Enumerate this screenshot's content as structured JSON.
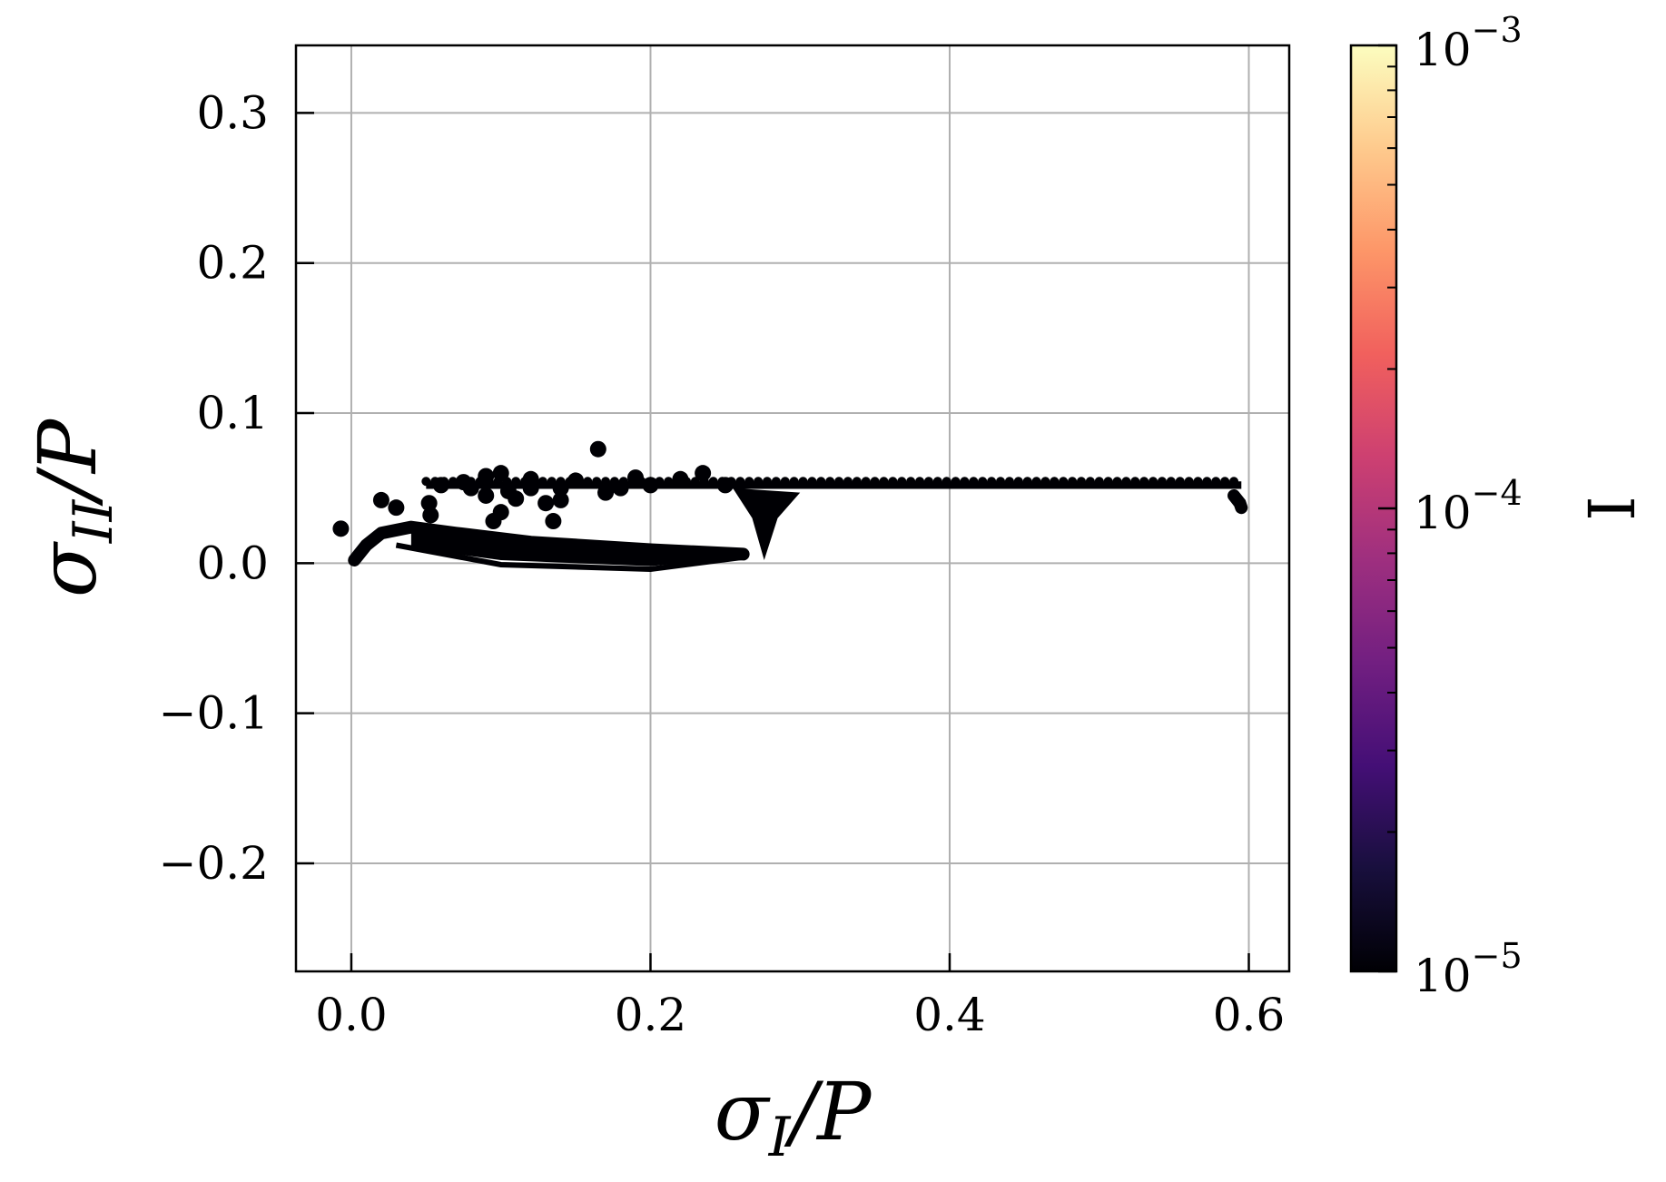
{
  "chart_data": {
    "type": "scatter",
    "xlabel": "σI / P",
    "ylabel": "σII / P",
    "xlabel_parts": {
      "base": "σ",
      "sub": "I",
      "rest": "/P"
    },
    "ylabel_parts": {
      "base": "σ",
      "sub": "II",
      "rest": "/P"
    },
    "xlim": [
      -0.037,
      0.627
    ],
    "ylim": [
      -0.272,
      0.345
    ],
    "x_ticks": [
      0.0,
      0.2,
      0.4,
      0.6
    ],
    "x_tick_labels": [
      "0.0",
      "0.2",
      "0.4",
      "0.6"
    ],
    "y_ticks": [
      -0.2,
      -0.1,
      0.0,
      0.1,
      0.2,
      0.3
    ],
    "y_tick_labels": [
      "−0.2",
      "−0.1",
      "0.0",
      "0.1",
      "0.2",
      "0.3"
    ],
    "grid": true,
    "point_color": "#000004",
    "colorbar": {
      "label": "I",
      "scale": "log",
      "range": [
        1e-05,
        0.001
      ],
      "tick_labels": [
        {
          "value": 1e-05,
          "base": "10",
          "exp": "−5"
        },
        {
          "value": 0.0001,
          "base": "10",
          "exp": "−4"
        },
        {
          "value": 0.001,
          "base": "10",
          "exp": "−3"
        }
      ],
      "colormap": [
        "#000004",
        "#180f3d",
        "#440f76",
        "#721f81",
        "#9e2f7f",
        "#cd4071",
        "#f1605d",
        "#fd9668",
        "#feca8d",
        "#fcfdbf"
      ]
    },
    "clusters": {
      "upper_band": {
        "x": [
          0.05,
          0.595
        ],
        "y": [
          0.0495,
          0.0545
        ]
      },
      "lower_arc": [
        [
          0.002,
          0.002
        ],
        [
          0.01,
          0.012
        ],
        [
          0.02,
          0.02
        ],
        [
          0.04,
          0.024
        ],
        [
          0.07,
          0.02
        ],
        [
          0.12,
          0.014
        ],
        [
          0.2,
          0.009
        ],
        [
          0.262,
          0.006
        ]
      ],
      "notch": [
        [
          0.255,
          0.05
        ],
        [
          0.268,
          0.03
        ],
        [
          0.276,
          0.002
        ],
        [
          0.285,
          0.03
        ],
        [
          0.3,
          0.047
        ]
      ],
      "right_tail": [
        [
          0.59,
          0.045
        ],
        [
          0.594,
          0.04
        ],
        [
          0.595,
          0.037
        ]
      ],
      "scattered": [
        [
          -0.007,
          0.023
        ],
        [
          0.02,
          0.042
        ],
        [
          0.03,
          0.037
        ],
        [
          0.052,
          0.04
        ],
        [
          0.053,
          0.032
        ],
        [
          0.09,
          0.058
        ],
        [
          0.1,
          0.06
        ],
        [
          0.095,
          0.028
        ],
        [
          0.1,
          0.034
        ],
        [
          0.105,
          0.048
        ],
        [
          0.11,
          0.043
        ],
        [
          0.12,
          0.056
        ],
        [
          0.13,
          0.04
        ],
        [
          0.135,
          0.028
        ],
        [
          0.14,
          0.05
        ],
        [
          0.15,
          0.055
        ],
        [
          0.165,
          0.076
        ],
        [
          0.17,
          0.047
        ],
        [
          0.18,
          0.05
        ],
        [
          0.19,
          0.057
        ],
        [
          0.2,
          0.052
        ],
        [
          0.22,
          0.056
        ],
        [
          0.235,
          0.06
        ],
        [
          0.25,
          0.052
        ],
        [
          0.08,
          0.05
        ],
        [
          0.075,
          0.054
        ],
        [
          0.06,
          0.052
        ],
        [
          0.12,
          0.05
        ],
        [
          0.09,
          0.045
        ],
        [
          0.14,
          0.042
        ]
      ]
    }
  }
}
